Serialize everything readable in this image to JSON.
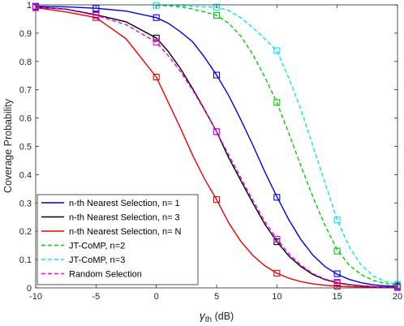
{
  "chart_data": {
    "type": "line",
    "xlabel": "γ",
    "xlabel_sub": "th",
    "xlabel_unit": " (dB)",
    "ylabel": "Coverage Probability",
    "xlim": [
      -10,
      20
    ],
    "ylim": [
      0,
      1
    ],
    "xticks": [
      -10,
      -5,
      0,
      5,
      10,
      15,
      20
    ],
    "yticks": [
      0,
      0.1,
      0.2,
      0.3,
      0.4,
      0.5,
      0.6,
      0.7,
      0.8,
      0.9,
      1
    ],
    "ytick_labels": [
      "0",
      "0.1",
      "0.2",
      "0.3",
      "0.4",
      "0.5",
      "0.6",
      "0.7",
      "0.8",
      "0.9",
      "1"
    ],
    "grid": false,
    "legend_position": "bottom-left",
    "markers_x": [
      -10,
      -5,
      0,
      5,
      10,
      15,
      20
    ],
    "series": [
      {
        "name": "n-th Nearest Selection, n= 1",
        "color": "#0000ee",
        "dash": "solid",
        "x": [
          -10,
          -7.5,
          -5,
          -2.5,
          0,
          1,
          2,
          3,
          4,
          5,
          6,
          7,
          8,
          9,
          10,
          11,
          12,
          13,
          14,
          15,
          16,
          17,
          18,
          19,
          20
        ],
        "y": [
          0.995,
          0.993,
          0.988,
          0.978,
          0.955,
          0.935,
          0.905,
          0.87,
          0.815,
          0.752,
          0.68,
          0.595,
          0.505,
          0.41,
          0.322,
          0.24,
          0.17,
          0.115,
          0.075,
          0.048,
          0.03,
          0.018,
          0.011,
          0.007,
          0.005
        ],
        "marker_y": [
          0.995,
          0.988,
          0.955,
          0.752,
          0.32,
          0.05,
          0.005
        ]
      },
      {
        "name": "n-th Nearest Selection, n= 3",
        "color": "#000000",
        "dash": "solid",
        "x": [
          -10,
          -7.5,
          -5,
          -2.5,
          0,
          1,
          2,
          3,
          4,
          5,
          6,
          7,
          8,
          9,
          10,
          11,
          12,
          13,
          14,
          15,
          16,
          17,
          18,
          19,
          20
        ],
        "y": [
          0.992,
          0.985,
          0.965,
          0.94,
          0.883,
          0.835,
          0.775,
          0.705,
          0.63,
          0.552,
          0.46,
          0.38,
          0.3,
          0.225,
          0.163,
          0.112,
          0.075,
          0.047,
          0.029,
          0.018,
          0.011,
          0.007,
          0.004,
          0.003,
          0.002
        ],
        "marker_y": [
          0.992,
          0.965,
          0.883,
          0.552,
          0.163,
          0.018,
          0.002
        ]
      },
      {
        "name": "n-th Nearest Selection, n= N",
        "color": "#ee0000",
        "dash": "solid",
        "x": [
          -10,
          -7.5,
          -5,
          -2.5,
          0,
          1,
          2,
          3,
          4,
          5,
          6,
          7,
          8,
          9,
          10,
          11,
          12,
          13,
          14,
          15,
          16,
          17,
          18,
          19,
          20
        ],
        "y": [
          0.99,
          0.975,
          0.955,
          0.88,
          0.745,
          0.655,
          0.565,
          0.47,
          0.385,
          0.312,
          0.23,
          0.165,
          0.115,
          0.078,
          0.052,
          0.034,
          0.022,
          0.014,
          0.009,
          0.006,
          0.004,
          0.003,
          0.002,
          0.001,
          0.001
        ],
        "marker_y": [
          0.99,
          0.955,
          0.745,
          0.312,
          0.052,
          0.006,
          0.001
        ]
      },
      {
        "name": "JT-CoMP, n=2",
        "color": "#00cc00",
        "dash": "dashed",
        "x": [
          0,
          1,
          2,
          3,
          4,
          5,
          6,
          7,
          8,
          9,
          10,
          11,
          12,
          13,
          14,
          15,
          16,
          17,
          18,
          19,
          20
        ],
        "y": [
          0.998,
          0.996,
          0.993,
          0.985,
          0.975,
          0.963,
          0.935,
          0.89,
          0.825,
          0.745,
          0.655,
          0.545,
          0.43,
          0.32,
          0.22,
          0.135,
          0.08,
          0.047,
          0.026,
          0.015,
          0.009
        ],
        "marker_y": [
          null,
          null,
          null,
          0.963,
          0.655,
          0.13,
          0.009
        ]
      },
      {
        "name": "JT-CoMP, n=3",
        "color": "#00e6e6",
        "dash": "dashed",
        "x": [
          0,
          1,
          2,
          3,
          4,
          5,
          6,
          7,
          8,
          9,
          10,
          11,
          12,
          13,
          14,
          15,
          16,
          17,
          18,
          19,
          20
        ],
        "y": [
          0.999,
          0.998,
          0.997,
          0.995,
          0.993,
          0.992,
          0.98,
          0.955,
          0.92,
          0.88,
          0.838,
          0.74,
          0.63,
          0.5,
          0.37,
          0.24,
          0.145,
          0.08,
          0.042,
          0.022,
          0.012
        ],
        "marker_y": [
          null,
          null,
          0.998,
          0.992,
          0.838,
          0.24,
          0.012
        ]
      },
      {
        "name": "Random Selection",
        "color": "#ee00ee",
        "dash": "dashed",
        "x": [
          -10,
          -7.5,
          -5,
          -2.5,
          0,
          1,
          2,
          3,
          4,
          5,
          6,
          7,
          8,
          9,
          10,
          11,
          12,
          13,
          14,
          15,
          16,
          17,
          18,
          19,
          20
        ],
        "y": [
          0.992,
          0.984,
          0.963,
          0.93,
          0.868,
          0.82,
          0.765,
          0.7,
          0.628,
          0.552,
          0.47,
          0.39,
          0.31,
          0.235,
          0.172,
          0.12,
          0.08,
          0.05,
          0.031,
          0.02,
          0.012,
          0.008,
          0.005,
          0.003,
          0.002
        ],
        "marker_y": [
          0.992,
          0.963,
          0.868,
          0.552,
          0.172,
          0.02,
          0.002
        ]
      }
    ]
  }
}
